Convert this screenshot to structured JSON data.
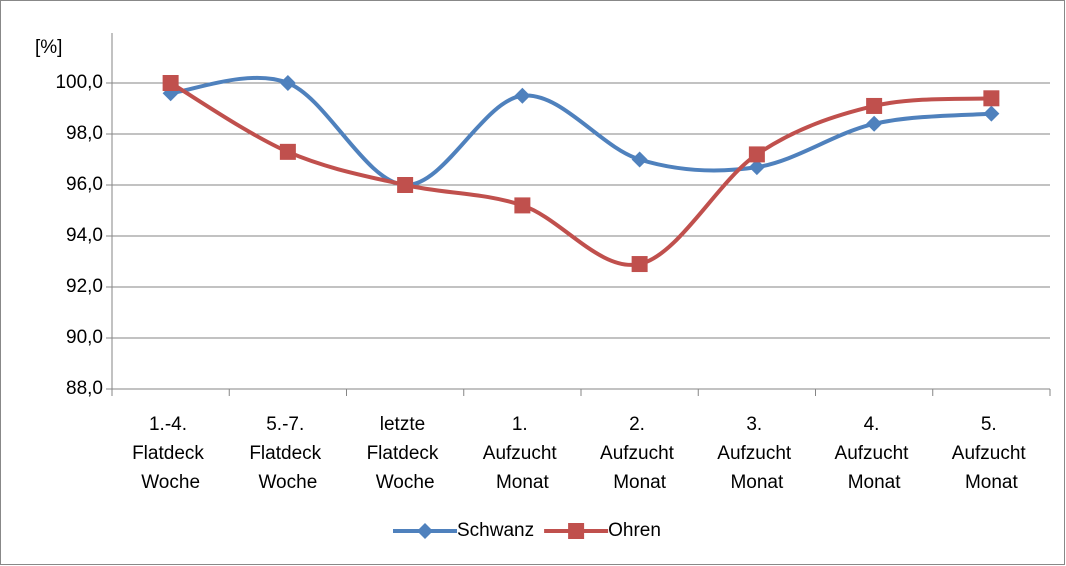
{
  "chart_data": {
    "type": "line",
    "y_label": "[%]",
    "categories": [
      "1.-4. Flatdeck Woche",
      "5.-7. Flatdeck Woche",
      "letzte Flatdeck Woche",
      "1. Aufzucht Monat",
      "2. Aufzucht Monat",
      "3. Aufzucht Monat",
      "4. Aufzucht Monat",
      "5. Aufzucht Monat"
    ],
    "series": [
      {
        "name": "Schwanz",
        "color": "#4f81bd",
        "marker": "diamond",
        "values": [
          99.6,
          100.0,
          96.0,
          99.5,
          97.0,
          96.7,
          98.4,
          98.8
        ]
      },
      {
        "name": "Ohren",
        "color": "#c0504d",
        "marker": "square",
        "values": [
          100.0,
          97.3,
          96.0,
          95.2,
          92.9,
          97.2,
          99.1,
          99.4
        ]
      }
    ],
    "smooth": true,
    "ylim": [
      88,
      100
    ],
    "yticks": [
      {
        "value": 88,
        "label": "88,0"
      },
      {
        "value": 90,
        "label": "90,0"
      },
      {
        "value": 92,
        "label": "92,0"
      },
      {
        "value": 94,
        "label": "94,0"
      },
      {
        "value": 96,
        "label": "96,0"
      },
      {
        "value": 98,
        "label": "98,0"
      },
      {
        "value": 100,
        "label": "100,0"
      }
    ],
    "grid": true,
    "legend": "bottom"
  }
}
